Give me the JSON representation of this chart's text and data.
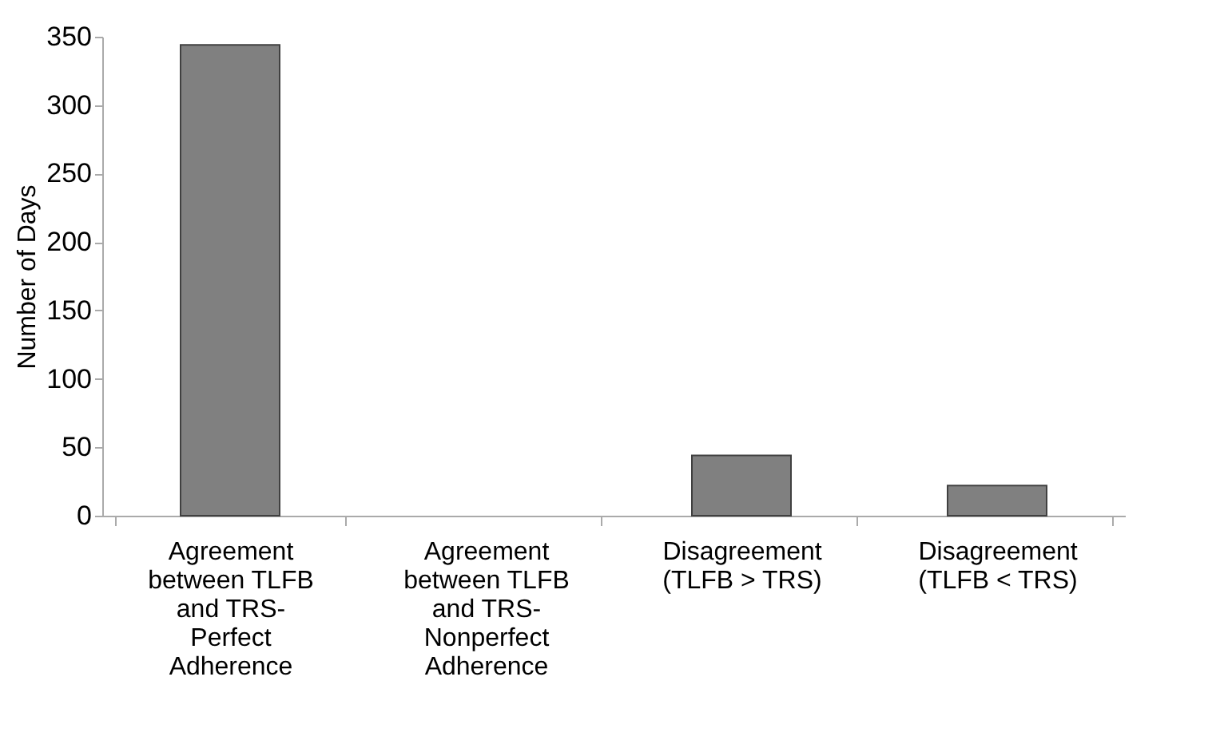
{
  "chart_data": {
    "type": "bar",
    "ylabel": "Number of Days",
    "categories": [
      "Agreement\nbetween TLFB\nand TRS-\nPerfect\nAdherence",
      "Agreement\nbetween TLFB\nand TRS-\nNonperfect\nAdherence",
      "Disagreement\n(TLFB > TRS)",
      "Disagreement\n(TLFB < TRS)"
    ],
    "values": [
      344,
      0,
      44,
      22
    ],
    "color": "#808080",
    "ylim": [
      0,
      350
    ],
    "yticks": [
      0,
      50,
      100,
      150,
      200,
      250,
      300,
      350
    ],
    "grid": false
  }
}
